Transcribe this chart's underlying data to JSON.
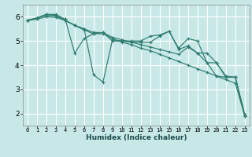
{
  "xlabel": "Humidex (Indice chaleur)",
  "bg_color": "#c8e8e8",
  "grid_color": "#ffffff",
  "line_color": "#2e7d6e",
  "xlim": [
    -0.5,
    23.5
  ],
  "ylim": [
    1.5,
    6.5
  ],
  "yticks": [
    2,
    3,
    4,
    5,
    6
  ],
  "xticks": [
    0,
    1,
    2,
    3,
    4,
    5,
    6,
    7,
    8,
    9,
    10,
    11,
    12,
    13,
    14,
    15,
    16,
    17,
    18,
    19,
    20,
    21,
    22,
    23
  ],
  "lines": [
    {
      "x": [
        0,
        1,
        2,
        3,
        4,
        5,
        6,
        7,
        8,
        9,
        10,
        11,
        12,
        13,
        14,
        15,
        16,
        17,
        18,
        19,
        20,
        21,
        22,
        23
      ],
      "y": [
        5.85,
        5.95,
        6.1,
        6.1,
        5.9,
        4.5,
        5.1,
        5.3,
        5.35,
        5.0,
        5.0,
        5.0,
        5.0,
        5.2,
        5.25,
        5.4,
        4.7,
        5.1,
        5.0,
        4.1,
        3.55,
        3.5,
        3.5,
        1.9
      ]
    },
    {
      "x": [
        0,
        1,
        2,
        3,
        4,
        5,
        6,
        7,
        8,
        9,
        10,
        11,
        12,
        13,
        14,
        15,
        16,
        17,
        18,
        19,
        20,
        21,
        22,
        23
      ],
      "y": [
        5.85,
        5.95,
        6.1,
        6.05,
        5.85,
        5.65,
        5.5,
        3.6,
        3.3,
        5.05,
        5.0,
        4.95,
        4.95,
        4.95,
        5.2,
        5.4,
        4.65,
        4.8,
        4.5,
        4.5,
        4.1,
        3.5,
        3.5,
        1.95
      ]
    },
    {
      "x": [
        0,
        1,
        2,
        3,
        4,
        5,
        6,
        7,
        8,
        9,
        10,
        11,
        12,
        13,
        14,
        15,
        16,
        17,
        18,
        19,
        20,
        21,
        22,
        23
      ],
      "y": [
        5.85,
        5.95,
        6.05,
        6.05,
        5.85,
        5.65,
        5.5,
        5.35,
        5.35,
        5.15,
        5.05,
        4.95,
        4.85,
        4.75,
        4.65,
        4.55,
        4.45,
        4.75,
        4.5,
        4.1,
        4.1,
        3.55,
        3.5,
        1.95
      ]
    },
    {
      "x": [
        0,
        1,
        2,
        3,
        4,
        5,
        6,
        7,
        8,
        9,
        10,
        11,
        12,
        13,
        14,
        15,
        16,
        17,
        18,
        19,
        20,
        21,
        22,
        23
      ],
      "y": [
        5.85,
        5.9,
        6.0,
        5.98,
        5.85,
        5.65,
        5.45,
        5.3,
        5.3,
        5.1,
        4.95,
        4.85,
        4.7,
        4.6,
        4.45,
        4.3,
        4.15,
        4.0,
        3.85,
        3.7,
        3.55,
        3.4,
        3.25,
        1.9
      ]
    }
  ]
}
